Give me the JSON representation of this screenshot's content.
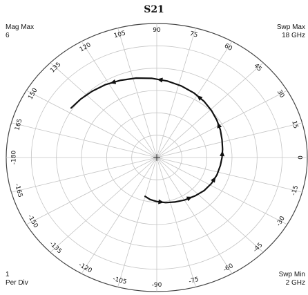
{
  "chart_data": {
    "type": "polar-line",
    "title": "S21",
    "mag_max_label": "Mag Max",
    "mag_max_value": "6",
    "swp_max_label": "Swp Max",
    "swp_max_value": "18 GHz",
    "swp_min_label": "Swp Min",
    "swp_min_value": "2 GHz",
    "per_div_value": "1",
    "per_div_label": "Per Div",
    "radial_max": 6,
    "radial_divisions": 6,
    "angle_ticks": [
      {
        "deg": 0,
        "label": "0"
      },
      {
        "deg": 15,
        "label": "15"
      },
      {
        "deg": 30,
        "label": "30"
      },
      {
        "deg": 45,
        "label": "45"
      },
      {
        "deg": 60,
        "label": "60"
      },
      {
        "deg": 75,
        "label": "75"
      },
      {
        "deg": 90,
        "label": "90"
      },
      {
        "deg": 105,
        "label": "105"
      },
      {
        "deg": 120,
        "label": "120"
      },
      {
        "deg": 135,
        "label": "135"
      },
      {
        "deg": 150,
        "label": "150"
      },
      {
        "deg": 165,
        "label": "165"
      },
      {
        "deg": 180,
        "label": "-180"
      },
      {
        "deg": -165,
        "label": "-165"
      },
      {
        "deg": -150,
        "label": "-150"
      },
      {
        "deg": -135,
        "label": "-135"
      },
      {
        "deg": -120,
        "label": "-120"
      },
      {
        "deg": -105,
        "label": "-105"
      },
      {
        "deg": -90,
        "label": "-90"
      },
      {
        "deg": -75,
        "label": "-75"
      },
      {
        "deg": -60,
        "label": "-60"
      },
      {
        "deg": -45,
        "label": "-45"
      },
      {
        "deg": -30,
        "label": "-30"
      },
      {
        "deg": -15,
        "label": "-15"
      }
    ],
    "series": [
      {
        "values": [
          {
            "mag": 1.8,
            "ang": -105
          },
          {
            "mag": 1.9,
            "ang": -98
          },
          {
            "mag": 1.97,
            "ang": -90
          },
          {
            "mag": 2.05,
            "ang": -80
          },
          {
            "mag": 2.12,
            "ang": -70
          },
          {
            "mag": 2.2,
            "ang": -60
          },
          {
            "mag": 2.3,
            "ang": -48
          },
          {
            "mag": 2.4,
            "ang": -38
          },
          {
            "mag": 2.47,
            "ang": -28
          },
          {
            "mag": 2.52,
            "ang": -18
          },
          {
            "mag": 2.56,
            "ang": -8
          },
          {
            "mag": 2.6,
            "ang": 0
          },
          {
            "mag": 2.65,
            "ang": 8
          },
          {
            "mag": 2.72,
            "ang": 17
          },
          {
            "mag": 2.82,
            "ang": 26
          },
          {
            "mag": 2.92,
            "ang": 35
          },
          {
            "mag": 3.03,
            "ang": 44
          },
          {
            "mag": 3.14,
            "ang": 53
          },
          {
            "mag": 3.25,
            "ang": 63
          },
          {
            "mag": 3.35,
            "ang": 73
          },
          {
            "mag": 3.45,
            "ang": 83
          },
          {
            "mag": 3.55,
            "ang": 93
          },
          {
            "mag": 3.65,
            "ang": 103
          },
          {
            "mag": 3.75,
            "ang": 113
          },
          {
            "mag": 3.85,
            "ang": 122
          },
          {
            "mag": 3.93,
            "ang": 131
          },
          {
            "mag": 4.0,
            "ang": 139
          },
          {
            "mag": 4.07,
            "ang": 147
          }
        ],
        "arrow_indices": [
          2,
          5,
          8,
          11,
          14,
          17,
          20,
          23
        ]
      }
    ]
  }
}
